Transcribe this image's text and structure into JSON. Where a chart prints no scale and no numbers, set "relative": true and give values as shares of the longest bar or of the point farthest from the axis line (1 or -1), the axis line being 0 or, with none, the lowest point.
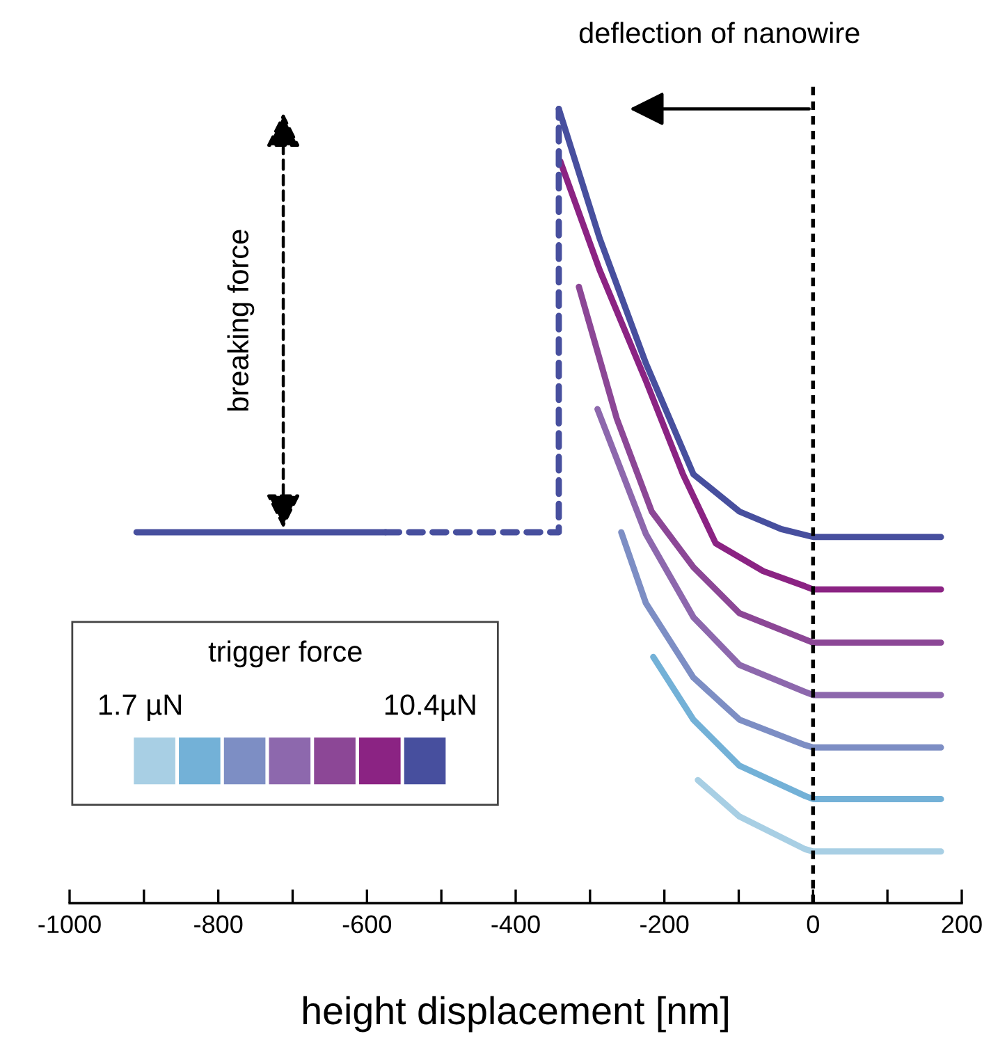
{
  "chart_data": {
    "type": "line",
    "relative": true,
    "xlabel": "height displacement [nm]",
    "legend_title": "trigger force",
    "xlim": [
      -1000,
      200
    ],
    "xticks": [
      -1000,
      {
        "value": -900,
        "label": null
      },
      -800,
      {
        "value": -700,
        "label": null
      },
      -600,
      {
        "value": -500,
        "label": null
      },
      -400,
      {
        "value": -300,
        "label": null
      },
      -200,
      {
        "value": -100,
        "label": null
      },
      0,
      {
        "value": 100,
        "label": null
      },
      200
    ],
    "series": [
      {
        "color": "#a8cfe4",
        "x": [
          -155,
          -99,
          -11,
          0,
          172
        ],
        "values": [
          0.155,
          0.109,
          0.068,
          0.065,
          0.065
        ]
      },
      {
        "color": "#73b1d7",
        "x": [
          -215,
          -161,
          -99,
          -11,
          0,
          172
        ],
        "values": [
          0.31,
          0.231,
          0.173,
          0.135,
          0.131,
          0.131
        ]
      },
      {
        "color": "#7d8ec4",
        "x": [
          -258,
          -225,
          -161,
          -99,
          -11,
          0,
          172
        ],
        "values": [
          0.467,
          0.378,
          0.284,
          0.231,
          0.199,
          0.196,
          0.196
        ]
      },
      {
        "color": "#8d68ad",
        "x": [
          -290,
          -225,
          -161,
          -99,
          -11,
          0,
          172
        ],
        "values": [
          0.622,
          0.465,
          0.36,
          0.3,
          0.266,
          0.262,
          0.262
        ]
      },
      {
        "color": "#8c4796",
        "x": [
          -315,
          -264,
          -217,
          -161,
          -99,
          0,
          172
        ],
        "values": [
          0.776,
          0.61,
          0.493,
          0.423,
          0.365,
          0.328,
          0.328
        ]
      },
      {
        "color": "#8b2383",
        "x": [
          -340,
          -287,
          -225,
          -175,
          -131,
          -67,
          -11,
          0,
          172
        ],
        "values": [
          0.934,
          0.797,
          0.658,
          0.54,
          0.453,
          0.418,
          0.399,
          0.395,
          0.395
        ]
      },
      {
        "color": "#474f9e",
        "x": [
          -342,
          -287,
          -225,
          -161,
          -99,
          -43,
          0,
          172
        ],
        "values": [
          1.0,
          0.837,
          0.68,
          0.54,
          0.493,
          0.471,
          0.461,
          0.461
        ]
      },
      {
        "color": "#474f9e",
        "line_style": "solid",
        "x": [
          -910,
          -575
        ],
        "values": [
          0.467,
          0.467
        ]
      },
      {
        "color": "#474f9e",
        "line_style": "dashed",
        "x": [
          -575,
          -342,
          -342
        ],
        "values": [
          0.467,
          0.467,
          1.0
        ]
      }
    ],
    "ref_lines": [
      {
        "axis": "x",
        "value": 0,
        "color": "#000000",
        "line_style": "dashed"
      }
    ],
    "annotations": [
      "deflection of nanowire",
      "breaking force",
      "1.7 µN",
      "10.4µN"
    ]
  }
}
